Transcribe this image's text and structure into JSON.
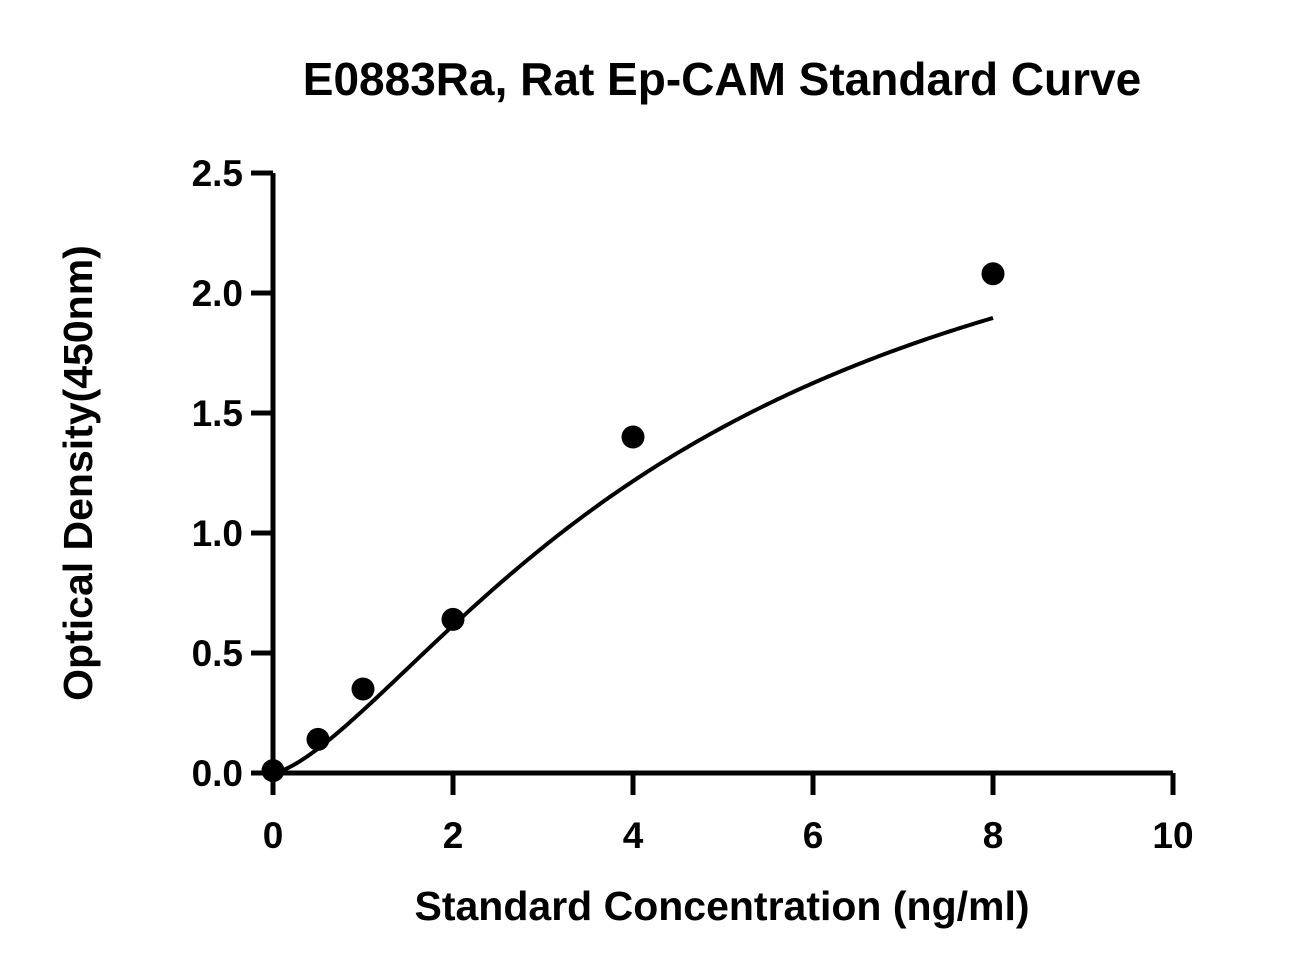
{
  "chart_data": {
    "type": "scatter",
    "title": "E0883Ra, Rat Ep-CAM Standard Curve",
    "xlabel": "Standard Concentration (ng/ml)",
    "ylabel": "Optical Density(450nm)",
    "xlim": [
      0,
      10
    ],
    "ylim": [
      0,
      2.5
    ],
    "x_ticks": [
      "0",
      "2",
      "4",
      "6",
      "8",
      "10"
    ],
    "y_ticks": [
      "0.0",
      "0.5",
      "1.0",
      "1.5",
      "2.0",
      "2.5"
    ],
    "grid": false,
    "legend": "none",
    "series": [
      {
        "x": [
          0,
          0.5,
          1,
          2,
          4,
          8
        ],
        "y": [
          0.01,
          0.14,
          0.35,
          0.64,
          1.4,
          2.08
        ]
      }
    ],
    "fit_curve": "4PL"
  }
}
